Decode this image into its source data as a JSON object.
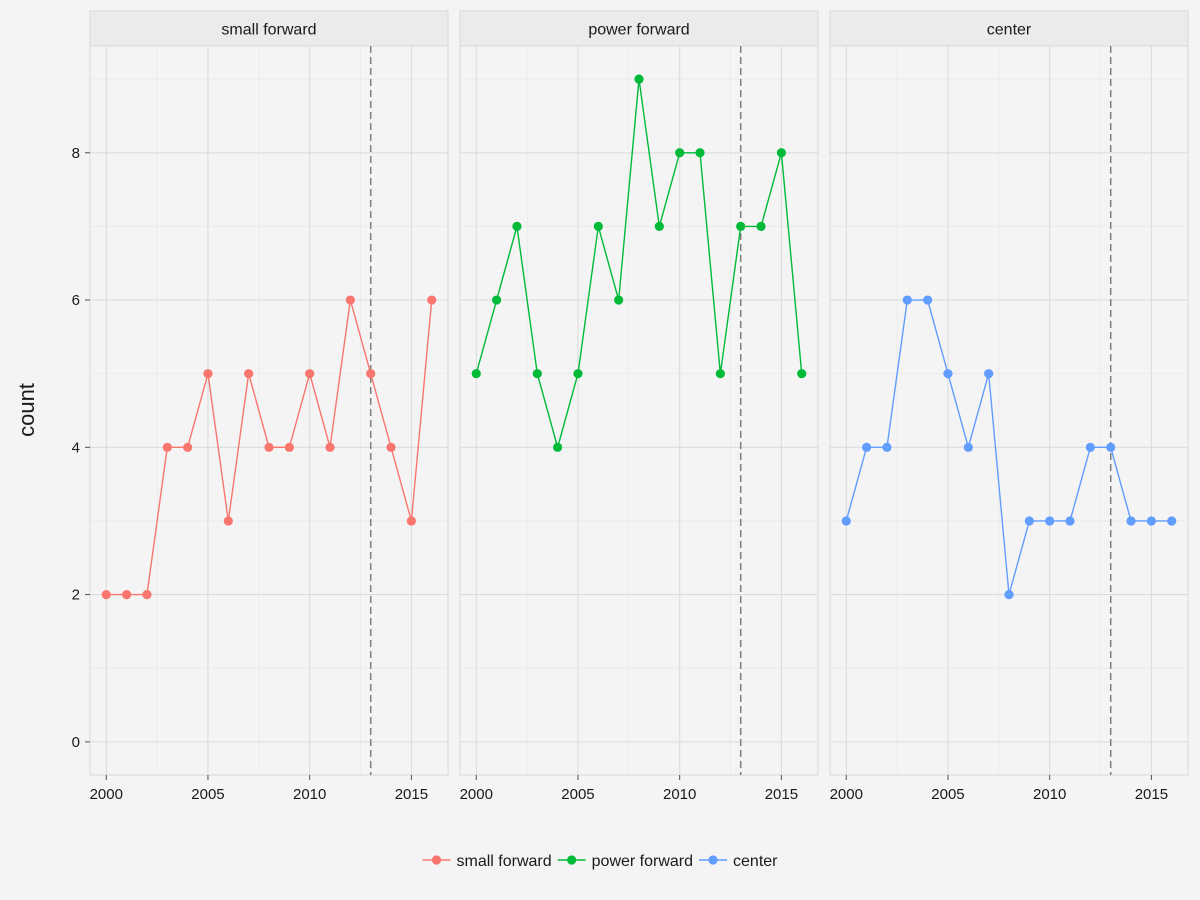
{
  "chart_data": {
    "type": "line",
    "ylabel": "count",
    "xlabel": "",
    "x": [
      2000,
      2001,
      2002,
      2003,
      2004,
      2005,
      2006,
      2007,
      2008,
      2009,
      2010,
      2011,
      2012,
      2013,
      2014,
      2015,
      2016
    ],
    "xlim": [
      1999.2,
      2016.8
    ],
    "ylim": [
      -0.45,
      9.45
    ],
    "x_ticks": [
      2000,
      2005,
      2010,
      2015
    ],
    "y_ticks": [
      0,
      2,
      4,
      6,
      8
    ],
    "reference_line_x": 2013,
    "grid": true,
    "legend_position": "bottom",
    "series": [
      {
        "name": "small forward",
        "color": "#F8766D",
        "values": [
          2,
          2,
          2,
          4,
          4,
          5,
          3,
          5,
          4,
          4,
          5,
          4,
          6,
          5,
          4,
          3,
          6
        ]
      },
      {
        "name": "power forward",
        "color": "#00BA38",
        "values": [
          5,
          6,
          7,
          5,
          4,
          5,
          7,
          6,
          9,
          7,
          8,
          8,
          5,
          7,
          7,
          8,
          5
        ]
      },
      {
        "name": "center",
        "color": "#619CFF",
        "values": [
          3,
          4,
          4,
          6,
          6,
          5,
          4,
          5,
          2,
          3,
          3,
          3,
          4,
          4,
          3,
          3,
          3
        ]
      }
    ]
  }
}
